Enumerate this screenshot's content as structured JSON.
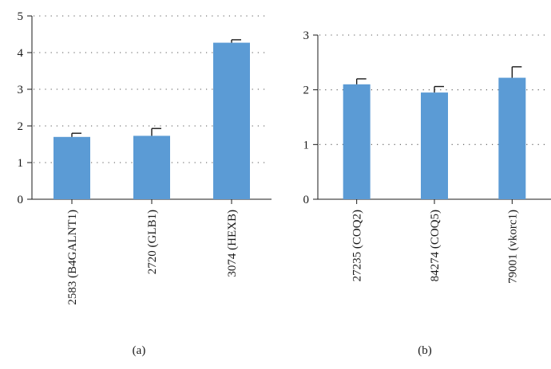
{
  "figure": {
    "bar_color": "#5b9bd5",
    "error_color": "#1a1a1a",
    "grid_color": "#555555",
    "grid_style": "dotted",
    "captions": [
      "(a)",
      "(b)"
    ]
  },
  "chart_data": [
    {
      "type": "bar",
      "panel_label": "(a)",
      "categories": [
        "2583 (B4GALNT1)",
        "2720 (GLB1)",
        "3074 (HEXB)"
      ],
      "values": [
        1.7,
        1.73,
        4.27
      ],
      "errors": [
        0.1,
        0.2,
        0.08
      ],
      "ylim": [
        0,
        5
      ],
      "yticks": [
        "0",
        "1",
        "2",
        "3",
        "4",
        "5"
      ],
      "tick_label_rotation": "vertical",
      "grid": "horizontal dotted",
      "legend": "none"
    },
    {
      "type": "bar",
      "panel_label": "(b)",
      "categories": [
        "27235 (COQ2)",
        "84274 (COQ5)",
        "79001 (vkorc1)"
      ],
      "values": [
        2.1,
        1.95,
        2.22
      ],
      "errors": [
        0.1,
        0.11,
        0.2
      ],
      "ylim": [
        0,
        3
      ],
      "yticks": [
        "0",
        "1",
        "2",
        "3"
      ],
      "tick_label_rotation": "vertical",
      "grid": "horizontal dotted",
      "legend": "none"
    }
  ]
}
